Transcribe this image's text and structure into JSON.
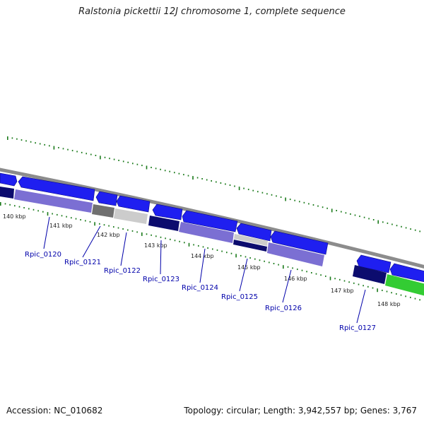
{
  "title": "Ralstonia pickettii 12J chromosome 1, complete sequence",
  "footer": {
    "accession": "Accession: NC_010682",
    "stats": "Topology: circular; Length: 3,942,557 bp; Genes: 3,767"
  },
  "colors": {
    "cds_forward": "#1f1ff0",
    "backbone": "#8c8c8c",
    "tick_marks": "#1a7a1a",
    "gene_navy": "#0c0c6e",
    "gene_lavender": "#7b6fd3",
    "gene_dark_gray": "#707070",
    "gene_light_gray": "#cccccc",
    "gene_green": "#33cc33",
    "locus_label": "#0000aa"
  },
  "map": {
    "kbp_ticks": [
      "140 kbp",
      "141 kbp",
      "142 kbp",
      "143 kbp",
      "144 kbp",
      "145 kbp",
      "146 kbp",
      "147 kbp",
      "148 kbp"
    ],
    "loci": [
      "Rpic_0120",
      "Rpic_0121",
      "Rpic_0122",
      "Rpic_0123",
      "Rpic_0124",
      "Rpic_0125",
      "Rpic_0126",
      "Rpic_0127"
    ]
  }
}
